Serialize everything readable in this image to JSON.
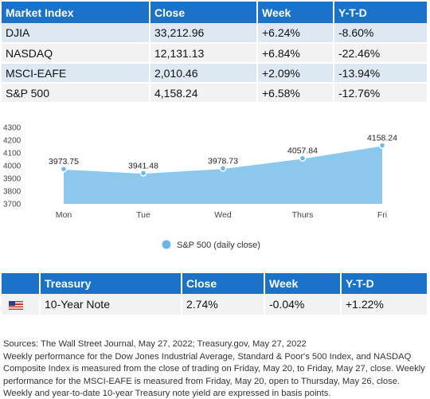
{
  "market_table": {
    "headers": [
      "Market Index",
      "Close",
      "Week",
      "Y-T-D"
    ],
    "rows": [
      [
        "DJIA",
        "33,212.96",
        "+6.24%",
        "-8.60%"
      ],
      [
        "NASDAQ",
        "12,131.13",
        "+6.84%",
        "-22.46%"
      ],
      [
        "MSCI-EAFE",
        "2,010.46",
        "+2.09%",
        "-13.94%"
      ],
      [
        "S&P 500",
        "4,158.24",
        "+6.58%",
        "-12.76%"
      ]
    ],
    "header_color": "#1a73c9"
  },
  "chart_data": {
    "type": "area",
    "categories": [
      "Mon",
      "Tue",
      "Wed",
      "Thurs",
      "Fri"
    ],
    "series": [
      {
        "name": "S&P 500 (daily close)",
        "values": [
          3973.75,
          3941.48,
          3978.73,
          4057.84,
          4158.24
        ],
        "color": "#6bb8e8"
      }
    ],
    "data_labels": [
      "3973.75",
      "3941.48",
      "3978.73",
      "4057.84",
      "4158.24"
    ],
    "ylim": [
      3700,
      4300
    ],
    "yticks": [
      3700,
      3800,
      3900,
      4000,
      4100,
      4200,
      4300
    ],
    "legend_position": "bottom",
    "grid": false
  },
  "treasury_table": {
    "headers": [
      "Treasury",
      "Close",
      "Week",
      "Y-T-D"
    ],
    "row": {
      "flag_icon": "us-flag-icon",
      "name": "10-Year Note",
      "close": "2.74%",
      "week": "-0.04%",
      "ytd": "+1.22%"
    }
  },
  "notes": {
    "sources": "Sources: The Wall Street Journal, May 27, 2022; Treasury.gov, May 27, 2022",
    "text": "Weekly performance for the Dow Jones Industrial Average, Standard & Poor's 500 Index, and NASDAQ Composite Index is measured from the close of trading on Friday, May 20, to Friday, May 27, close. Weekly performance for the MSCI-EAFE is measured from Friday, May 20, open to Thursday, May 26, close. Weekly and year-to-date 10-year Treasury note yield are expressed in basis points."
  }
}
